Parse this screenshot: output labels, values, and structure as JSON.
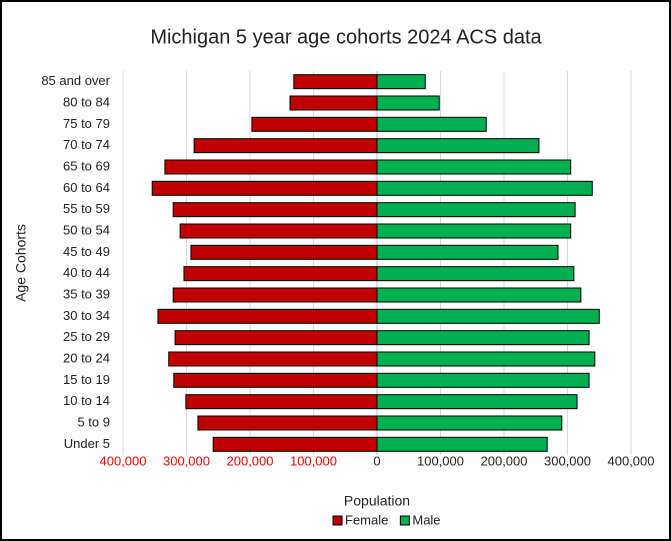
{
  "chart_data": {
    "type": "pyramid",
    "title": "Michigan 5 year age cohorts 2024 ACS data",
    "x_label": "Population",
    "y_label": "Age Cohorts",
    "categories": [
      "Under 5",
      "5 to 9",
      "10 to 14",
      "15 to 19",
      "20 to 24",
      "25 to 29",
      "30 to 34",
      "35 to 39",
      "40 to 44",
      "45 to 49",
      "50 to 54",
      "55 to 59",
      "60 to 64",
      "65 to 69",
      "70 to 74",
      "75 to 79",
      "80 to 84",
      "85 and over"
    ],
    "series": [
      {
        "name": "Female",
        "color": "#c00000",
        "values": [
          -258000,
          -282000,
          -301000,
          -320000,
          -328000,
          -318000,
          -345000,
          -321000,
          -304000,
          -293000,
          -310000,
          -321000,
          -354000,
          -334000,
          -288000,
          -197000,
          -137000,
          -131000
        ]
      },
      {
        "name": "Male",
        "color": "#00b050",
        "values": [
          268000,
          291000,
          315000,
          334000,
          343000,
          334000,
          350000,
          321000,
          310000,
          285000,
          305000,
          312000,
          339000,
          305000,
          255000,
          172000,
          98000,
          76000
        ]
      }
    ],
    "xlim": [
      -400000,
      400000
    ],
    "xticks": [
      {
        "value": -400000,
        "label": "400,000"
      },
      {
        "value": -300000,
        "label": "300,000"
      },
      {
        "value": -200000,
        "label": "200,000"
      },
      {
        "value": -100000,
        "label": "100,000"
      },
      0,
      {
        "value": 100000,
        "label": "100,000"
      },
      {
        "value": 200000,
        "label": "200,000"
      },
      {
        "value": 300000,
        "label": "300,000"
      },
      {
        "value": 400000,
        "label": "400,000"
      }
    ],
    "negative_tick_color": "#ff0000",
    "grid": true,
    "legend": "bottom"
  }
}
